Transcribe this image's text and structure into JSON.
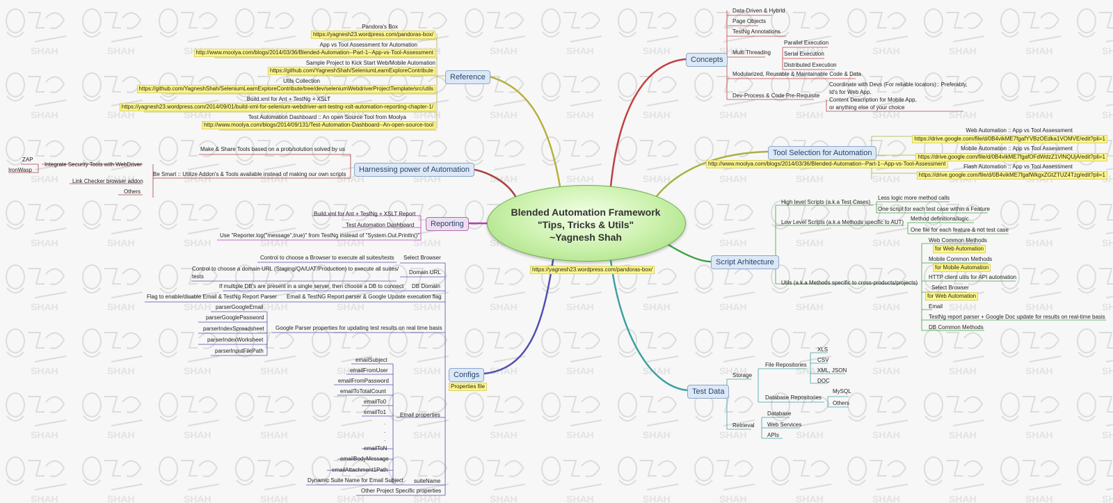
{
  "colors": {
    "reference": "#b8b040",
    "harnessing": "#a84040",
    "reporting": "#b040b0",
    "configs": "#5050b0",
    "concepts": "#c04040",
    "tool_selection": "#a8b040",
    "script": "#40a040",
    "test_data": "#40a0a0",
    "highlight": "#fff78a"
  },
  "center": {
    "lines": [
      "Blended Automation Framework",
      "\"Tips, Tricks & Utils\"",
      "~Yagnesh Shah"
    ],
    "link": "https://yagnesh23.wordpress.com/pandoras-box/"
  },
  "reference": {
    "title": "Reference",
    "items": [
      {
        "label": "Pandora's Box",
        "link": "https://yagnesh23.wordpress.com/pandoras-box/"
      },
      {
        "label": "App vs Tool Assessment for Automation",
        "link": "http://www.moolya.com/blogs/2014/03/36/Blended-Automation--Part-1--App-vs-Tool-Assessment"
      },
      {
        "label": "Sample Project to Kick Start Web/Mobile Automation",
        "link": "https://github.com/YagneshShah/SeleniumLearnExploreContribute"
      },
      {
        "label": "Utils Collection",
        "link": "https://github.com/YagneshShah/SeleniumLearnExploreContribute/tree/dev/seleniumWebdriverProjectTemplate/src/utils"
      },
      {
        "label": "Build.xml for Ant + TestNg + XSLT",
        "link": "https://yagnesh23.wordpress.com/2014/09/01/build-xml-for-selenium-webdriver-ant-testng-xslt-automation-reporting-chapter-1/"
      },
      {
        "label": "Test Automation Dashboard :: An open Source Tool from Moolya",
        "link": "http://www.moolya.com/blogs/2014/09/131/Test-Automation-Dashboard--An-open-source-tool"
      }
    ]
  },
  "harnessing": {
    "title": "Harnessing power of Automation",
    "make_share": "Make & Share Tools based on a prob/solution solved by us",
    "be_smart": "Be Smart :: Utilize Addon's & Tools available instead of making our own scripts",
    "integrate": "Integrate Security Tools with WebDriver",
    "zap": "ZAP",
    "ironwasp": "IronWasp",
    "link_checker": "Link Checker browser addon",
    "others": "Others"
  },
  "reporting": {
    "title": "Reporting",
    "items": [
      "Build.xml for Ant + TestNg + XSLT Report",
      "Test Automation Dashboard",
      "Use \"Reporter.log(\"message\",true)\" from TestNg instead of \"System.Out.Println()\""
    ]
  },
  "configs": {
    "title": "Configs",
    "tag": "Properties file",
    "select_browser": "Select Browser",
    "select_browser_desc": "Control to choose a Browser to execute all suites/tests",
    "domain_url": "Domain URL",
    "domain_url_desc1": "Control to choose a domain URL (Staging/QA/UAT/Production) to execute all suites/",
    "domain_url_desc2": "tests",
    "db_domain": "DB Domain",
    "db_domain_desc": "If multiple DB's are present in a single server, then choose a DB to connect",
    "email_flag": "Email & TestNG Report parser & Google Update execution flag",
    "email_flag_desc": "Flag to enable/disable Email & TestNg Report Parser",
    "google_parser": "Google Parser properties for updating test results on real time basis",
    "google_items": [
      "parserGoogleEmail",
      "parserGooglePassword",
      "parserIndexSpreadsheet",
      "parserIndexWorksheet",
      "parserInputFilePath"
    ],
    "email_props": "Email properties",
    "email_items": [
      "emailSubject",
      "emailFromUser",
      "emailFromPassword",
      "emailToTotalCount",
      "emailTo0",
      "emailTo1",
      ".",
      ".",
      ".",
      "emailToN",
      "emailBodyMessage",
      "emailAttachment1Path"
    ],
    "suite_name": "suiteName",
    "suite_name_desc": "Dynamic Suite Name for Email Subject",
    "other_props": "Other Project Specific properties"
  },
  "concepts": {
    "title": "Concepts",
    "data_driven": "Data-Driven & Hybrid",
    "page_objects": "Page Objects",
    "testng": "TestNg Annotations",
    "multi_threading": "Multi Threading",
    "parallel": "Parallel Execution",
    "serial": "Serial Execution",
    "distributed": "Distributed Execution",
    "modular": "Modularized, Reusable & Maintainable Code & Data",
    "dev_process": "Dev-Process & Code Pre-Requisite",
    "coordinate": [
      "Coordinate with Devs (For reliable locators):: Preferably,",
      "Id's for Web App,",
      "Content Description for Mobile App,",
      "or anything else of your choice"
    ]
  },
  "tool_selection": {
    "title": "Tool Selection for Automation",
    "link": "http://www.moolya.com/blogs/2014/03/36/Blended-Automation--Part-1--App-vs-Tool-Assessment",
    "items": [
      {
        "label": "Web Automation :: App vs Tool Assessment",
        "link": "https://drive.google.com/file/d/0B4vikME7fgafYVBzOEdka1VOMVE/edit?pli=1"
      },
      {
        "label": "Mobile Automation :: App vs Tool Assessment",
        "link": "https://drive.google.com/file/d/0B4vikME7fgafOFdWdzZ1VlNQUjA/edit?pli=1"
      },
      {
        "label": "Flash Automation :: App vs Tool Assessment",
        "link": "https://drive.google.com/file/d/0B4vikME7fgafWkgxZGtZTUZ4Tzg/edit?pli=1"
      }
    ]
  },
  "script": {
    "title": "Script Arhitecture",
    "high_level": "High level Scripts (a.k.a Test Cases)",
    "less_logic": "Less logic more method calls",
    "one_script": "One script for each test case within a Feature",
    "low_level": "Low Level Scripts (a.k.a Methods specific to AUT)",
    "method_defs": "Method definitions/logic",
    "one_file": "One file for each feature & not test case",
    "utils": "Utils (a.k.a Methods specific to cross-products/projects)",
    "web_common": "Web Common Methods",
    "for_web": "for Web Automation",
    "mobile_common": "Mobile Common Methods",
    "for_mobile": "for Mobile Automation",
    "http_client": "HTTP client utils for API automation",
    "select_browser": "Select Browser",
    "for_web2": "for Web Automation",
    "email": "Email",
    "testng_parser": "TestNg report parser + Google Doc update for results on real-time basis",
    "db_common": "DB Common Methods"
  },
  "test_data": {
    "title": "Test Data",
    "storage": "Storage",
    "file_repos": "File Repositories",
    "files": [
      "XLS",
      "CSV",
      "XML, JSON",
      "DOC"
    ],
    "db_repos": "Database Repositories",
    "dbs": [
      "MySQL",
      "Others"
    ],
    "retrieval": "Retrieval",
    "retrievals": [
      "Database",
      "Web Services",
      "APIs"
    ]
  }
}
